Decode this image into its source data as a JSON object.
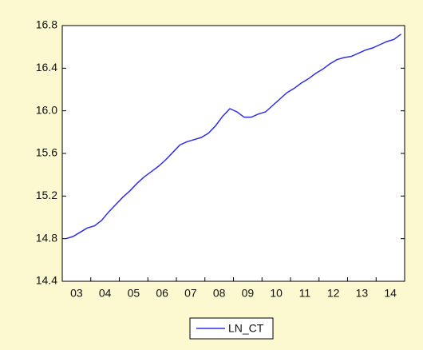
{
  "chart_data": {
    "type": "line",
    "categories": [
      "03",
      null,
      null,
      null,
      "04",
      null,
      null,
      null,
      "05",
      null,
      null,
      null,
      "06",
      null,
      null,
      null,
      "07",
      null,
      null,
      null,
      "08",
      null,
      null,
      null,
      "09",
      null,
      null,
      null,
      "10",
      null,
      null,
      null,
      "11",
      null,
      null,
      null,
      "12",
      null,
      null,
      null,
      "13",
      null,
      null,
      null,
      "14",
      null,
      null,
      null
    ],
    "series": [
      {
        "name": "LN_CT",
        "color": "#2e2ee6",
        "values": [
          14.8,
          14.82,
          14.86,
          14.9,
          14.92,
          14.97,
          15.05,
          15.12,
          15.19,
          15.25,
          15.32,
          15.38,
          15.43,
          15.48,
          15.54,
          15.61,
          15.68,
          15.71,
          15.73,
          15.75,
          15.79,
          15.86,
          15.95,
          16.02,
          15.99,
          15.94,
          15.94,
          15.97,
          15.99,
          16.05,
          16.11,
          16.17,
          16.21,
          16.26,
          16.3,
          16.35,
          16.39,
          16.44,
          16.48,
          16.5,
          16.51,
          16.54,
          16.57,
          16.59,
          16.62,
          16.65,
          16.67,
          16.72
        ]
      }
    ],
    "ylim": [
      14.4,
      16.8
    ],
    "yticks": [
      14.4,
      14.8,
      15.2,
      15.6,
      {
        "value": 16,
        "label": "16.0"
      },
      16.4,
      16.8
    ],
    "legend": "bottom"
  }
}
